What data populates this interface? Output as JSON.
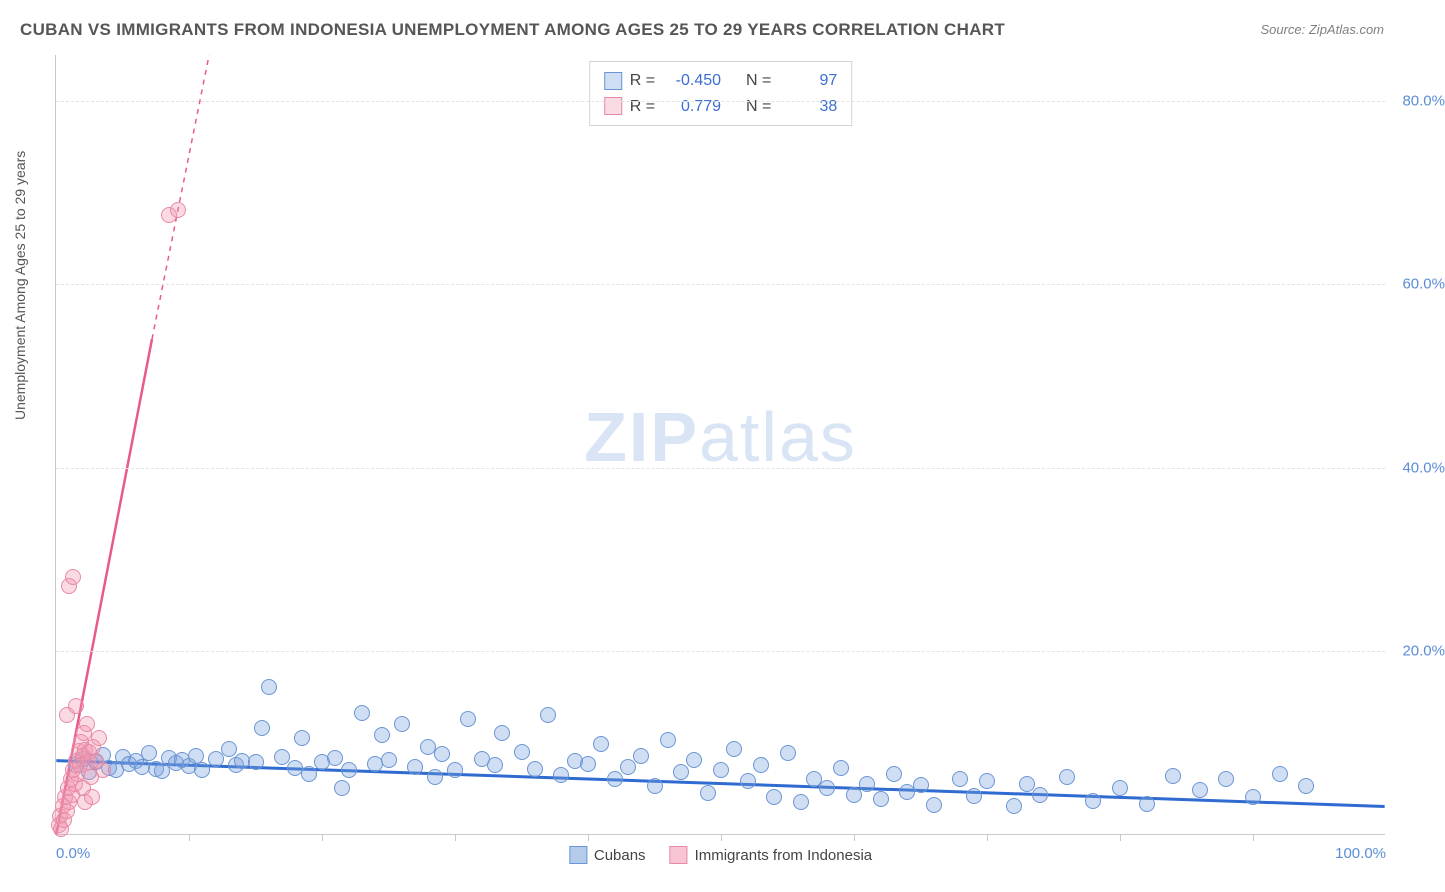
{
  "title": "CUBAN VS IMMIGRANTS FROM INDONESIA UNEMPLOYMENT AMONG AGES 25 TO 29 YEARS CORRELATION CHART",
  "source": "Source: ZipAtlas.com",
  "ylabel": "Unemployment Among Ages 25 to 29 years",
  "watermark_bold": "ZIP",
  "watermark_rest": "atlas",
  "chart": {
    "type": "scatter",
    "xlim": [
      0,
      100
    ],
    "ylim": [
      0,
      85
    ],
    "ytick_values": [
      20,
      40,
      60,
      80
    ],
    "ytick_labels": [
      "20.0%",
      "40.0%",
      "60.0%",
      "80.0%"
    ],
    "xtick_values": [
      10,
      20,
      30,
      40,
      50,
      60,
      70,
      80,
      90
    ],
    "xmin_label": "0.0%",
    "xmax_label": "100.0%",
    "background_color": "#ffffff",
    "grid_color": "#e3e3e3",
    "axis_color": "#c8c8c8",
    "label_color": "#5b8dd6",
    "marker_radius": 8,
    "series": [
      {
        "name": "Cubans",
        "fill_color": "rgba(120,160,220,0.35)",
        "stroke_color": "#6a95d4",
        "trend_color": "#2f6bd0",
        "trend_width": 3,
        "trend_dash": "none",
        "R": "-0.450",
        "N": "97",
        "trend": {
          "x1": 0,
          "y1": 8.0,
          "x2": 100,
          "y2": 3.0
        },
        "points": [
          [
            1.5,
            7.5
          ],
          [
            2,
            8.2
          ],
          [
            2.5,
            6.8
          ],
          [
            3,
            7.9
          ],
          [
            3.5,
            8.6
          ],
          [
            4,
            7.2
          ],
          [
            4.5,
            7.0
          ],
          [
            5,
            8.4
          ],
          [
            5.5,
            7.6
          ],
          [
            6,
            8.0
          ],
          [
            6.5,
            7.3
          ],
          [
            7,
            8.8
          ],
          [
            7.5,
            7.1
          ],
          [
            8,
            6.9
          ],
          [
            8.5,
            8.3
          ],
          [
            9,
            7.7
          ],
          [
            9.5,
            8.1
          ],
          [
            10,
            7.4
          ],
          [
            10.5,
            8.5
          ],
          [
            11,
            7.0
          ],
          [
            12,
            8.2
          ],
          [
            13,
            9.3
          ],
          [
            13.5,
            7.5
          ],
          [
            14,
            8.0
          ],
          [
            15,
            7.8
          ],
          [
            15.5,
            11.5
          ],
          [
            16,
            16.0
          ],
          [
            17,
            8.4
          ],
          [
            18,
            7.2
          ],
          [
            18.5,
            10.5
          ],
          [
            19,
            6.5
          ],
          [
            20,
            7.9
          ],
          [
            21,
            8.3
          ],
          [
            21.5,
            5.0
          ],
          [
            22,
            7.0
          ],
          [
            23,
            13.2
          ],
          [
            24,
            7.6
          ],
          [
            24.5,
            10.8
          ],
          [
            25,
            8.1
          ],
          [
            26,
            12.0
          ],
          [
            27,
            7.3
          ],
          [
            28,
            9.5
          ],
          [
            28.5,
            6.2
          ],
          [
            29,
            8.7
          ],
          [
            30,
            7.0
          ],
          [
            31,
            12.5
          ],
          [
            32,
            8.2
          ],
          [
            33,
            7.5
          ],
          [
            33.5,
            11.0
          ],
          [
            35,
            8.9
          ],
          [
            36,
            7.1
          ],
          [
            37,
            13.0
          ],
          [
            38,
            6.4
          ],
          [
            39,
            8.0
          ],
          [
            40,
            7.6
          ],
          [
            41,
            9.8
          ],
          [
            42,
            6.0
          ],
          [
            43,
            7.3
          ],
          [
            44,
            8.5
          ],
          [
            45,
            5.2
          ],
          [
            46,
            10.2
          ],
          [
            47,
            6.8
          ],
          [
            48,
            8.1
          ],
          [
            49,
            4.5
          ],
          [
            50,
            7.0
          ],
          [
            51,
            9.3
          ],
          [
            52,
            5.8
          ],
          [
            53,
            7.5
          ],
          [
            54,
            4.0
          ],
          [
            55,
            8.8
          ],
          [
            56,
            3.5
          ],
          [
            57,
            6.0
          ],
          [
            58,
            5.0
          ],
          [
            59,
            7.2
          ],
          [
            60,
            4.2
          ],
          [
            61,
            5.5
          ],
          [
            62,
            3.8
          ],
          [
            63,
            6.5
          ],
          [
            64,
            4.6
          ],
          [
            65,
            5.3
          ],
          [
            66,
            3.2
          ],
          [
            68,
            6.0
          ],
          [
            69,
            4.1
          ],
          [
            70,
            5.8
          ],
          [
            72,
            3.0
          ],
          [
            73,
            5.5
          ],
          [
            74,
            4.3
          ],
          [
            76,
            6.2
          ],
          [
            78,
            3.6
          ],
          [
            80,
            5.0
          ],
          [
            82,
            3.3
          ],
          [
            84,
            6.3
          ],
          [
            86,
            4.8
          ],
          [
            88,
            6.0
          ],
          [
            90,
            4.0
          ],
          [
            92,
            6.5
          ],
          [
            94,
            5.2
          ]
        ]
      },
      {
        "name": "Immigrants from Indonesia",
        "fill_color": "rgba(240,150,175,0.35)",
        "stroke_color": "#e88aa5",
        "trend_color": "#e85a8a",
        "trend_width": 2.5,
        "trend_dash": "none",
        "trend_dash_extend": "5,5",
        "R": "0.779",
        "N": "38",
        "trend": {
          "x1": 0,
          "y1": 0,
          "x2": 7.2,
          "y2": 54
        },
        "trend_extend": {
          "x1": 7.2,
          "y1": 54,
          "x2": 11.5,
          "y2": 85
        },
        "points": [
          [
            0.2,
            1.0
          ],
          [
            0.3,
            2.0
          ],
          [
            0.4,
            0.5
          ],
          [
            0.5,
            3.0
          ],
          [
            0.6,
            1.5
          ],
          [
            0.7,
            4.0
          ],
          [
            0.8,
            2.5
          ],
          [
            0.9,
            5.0
          ],
          [
            1.0,
            3.5
          ],
          [
            1.1,
            6.0
          ],
          [
            1.2,
            4.2
          ],
          [
            1.3,
            7.0
          ],
          [
            1.4,
            5.5
          ],
          [
            1.5,
            8.0
          ],
          [
            1.6,
            6.5
          ],
          [
            1.7,
            9.0
          ],
          [
            1.8,
            7.5
          ],
          [
            1.9,
            10.0
          ],
          [
            2.0,
            8.5
          ],
          [
            2.1,
            11.0
          ],
          [
            2.2,
            9.2
          ],
          [
            2.3,
            12.0
          ],
          [
            2.4,
            7.8
          ],
          [
            2.5,
            8.9
          ],
          [
            2.6,
            6.2
          ],
          [
            2.8,
            9.5
          ],
          [
            3.0,
            8.0
          ],
          [
            3.2,
            10.5
          ],
          [
            1.0,
            27.0
          ],
          [
            1.3,
            28.0
          ],
          [
            0.8,
            13.0
          ],
          [
            1.5,
            14.0
          ],
          [
            2.0,
            5.0
          ],
          [
            2.2,
            3.5
          ],
          [
            2.7,
            4.0
          ],
          [
            3.5,
            7.0
          ],
          [
            8.5,
            67.5
          ],
          [
            9.2,
            68.0
          ]
        ]
      }
    ]
  },
  "stats_labels": {
    "R": "R =",
    "N": "N ="
  },
  "legend": {
    "items": [
      {
        "label": "Cubans",
        "fill": "rgba(120,160,220,0.55)",
        "border": "#6a95d4"
      },
      {
        "label": "Immigrants from Indonesia",
        "fill": "rgba(240,150,175,0.55)",
        "border": "#e88aa5"
      }
    ]
  }
}
